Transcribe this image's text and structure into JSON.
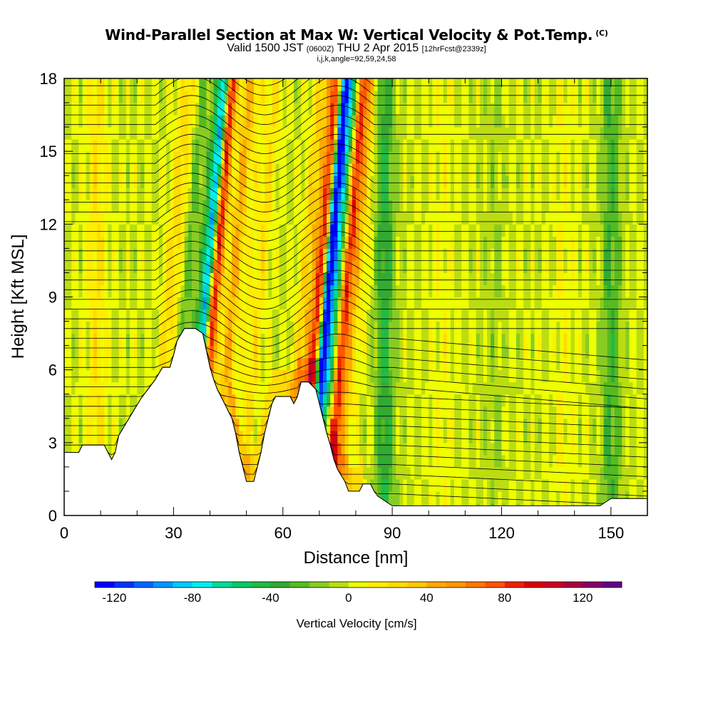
{
  "header": {
    "title": "Wind-Parallel Section at Max W: Vertical Velocity & Pot.Temp.",
    "title_mark": "(C)",
    "valid_prefix": "Valid 1500 JST",
    "valid_zulu": "(0600Z)",
    "valid_date": "THU 2 Apr 2015",
    "forecast_tag": "[12hrFcst@2339z]",
    "indices": "i,j,k,angle=92,59,24,58"
  },
  "chart_data": {
    "type": "heatmap",
    "xlabel": "Distance [nm]",
    "ylabel": "Height [Kft MSL]",
    "xlim": [
      0,
      160
    ],
    "ylim": [
      0,
      18
    ],
    "x_ticks": [
      "0",
      "30",
      "60",
      "90",
      "120",
      "150"
    ],
    "x_tick_values": [
      0,
      30,
      60,
      90,
      120,
      150
    ],
    "y_ticks": [
      "0",
      "3",
      "6",
      "9",
      "12",
      "15",
      "18"
    ],
    "y_tick_values": [
      0,
      3,
      6,
      9,
      12,
      15,
      18
    ],
    "colorbar": {
      "title": "Vertical Velocity [cm/s]",
      "labels": [
        "-120",
        "-80",
        "-40",
        "0",
        "40",
        "80",
        "120"
      ],
      "label_values": [
        -120,
        -80,
        -40,
        0,
        40,
        80,
        120
      ],
      "min": -130,
      "max": 140,
      "step": 10,
      "colors": [
        "#0000ff",
        "#0033ff",
        "#0066ff",
        "#0099ff",
        "#00ccff",
        "#00eeee",
        "#00dd99",
        "#00cc66",
        "#22bb44",
        "#33aa33",
        "#55bb22",
        "#88cc22",
        "#bbdd11",
        "#eeff00",
        "#ffee00",
        "#ffdd00",
        "#ffcc00",
        "#ffaa00",
        "#ff9900",
        "#ff7700",
        "#ff5500",
        "#ee2200",
        "#dd0000",
        "#cc0022",
        "#aa0044",
        "#880066",
        "#660088"
      ]
    },
    "terrain_top_kft": [
      [
        0,
        2.6
      ],
      [
        4,
        2.6
      ],
      [
        5,
        2.9
      ],
      [
        11,
        2.9
      ],
      [
        12,
        2.6
      ],
      [
        13,
        2.3
      ],
      [
        14,
        2.6
      ],
      [
        15,
        3.3
      ],
      [
        17,
        3.8
      ],
      [
        19,
        4.3
      ],
      [
        21,
        4.8
      ],
      [
        23,
        5.2
      ],
      [
        25,
        5.6
      ],
      [
        27,
        6.1
      ],
      [
        29,
        6.1
      ],
      [
        30,
        6.6
      ],
      [
        31,
        7.2
      ],
      [
        33,
        7.7
      ],
      [
        36,
        7.7
      ],
      [
        38,
        7.5
      ],
      [
        39,
        6.8
      ],
      [
        40,
        6.1
      ],
      [
        41,
        5.6
      ],
      [
        42,
        5.2
      ],
      [
        44,
        4.6
      ],
      [
        46,
        4.0
      ],
      [
        47,
        3.4
      ],
      [
        48,
        2.6
      ],
      [
        49,
        2.0
      ],
      [
        50,
        1.4
      ],
      [
        52,
        1.4
      ],
      [
        53,
        2.0
      ],
      [
        54,
        2.6
      ],
      [
        55,
        3.4
      ],
      [
        56,
        4.0
      ],
      [
        57,
        4.6
      ],
      [
        58,
        4.9
      ],
      [
        62,
        4.9
      ],
      [
        63,
        4.6
      ],
      [
        64,
        4.9
      ],
      [
        65,
        5.5
      ],
      [
        67,
        5.5
      ],
      [
        69,
        5.2
      ],
      [
        70,
        4.6
      ],
      [
        71,
        4.0
      ],
      [
        72,
        3.4
      ],
      [
        73,
        2.9
      ],
      [
        74,
        2.3
      ],
      [
        75,
        1.9
      ],
      [
        77,
        1.4
      ],
      [
        78,
        1.0
      ],
      [
        81,
        1.0
      ],
      [
        82,
        1.3
      ],
      [
        84,
        1.3
      ],
      [
        85,
        1.0
      ],
      [
        86,
        0.8
      ],
      [
        88,
        0.6
      ],
      [
        90,
        0.4
      ],
      [
        95,
        0.4
      ],
      [
        100,
        0.4
      ],
      [
        147,
        0.4
      ],
      [
        150,
        0.7
      ],
      [
        154,
        0.7
      ],
      [
        160,
        0.7
      ]
    ],
    "vertical_velocity_bands_cm_s": [
      {
        "x": 9,
        "w": 20
      },
      {
        "x": 29,
        "w": 40
      },
      {
        "x": 31,
        "w": -30
      },
      {
        "x": 36,
        "w": -20
      },
      {
        "x": 38,
        "w": -90
      },
      {
        "x": 40,
        "w": 100
      },
      {
        "x": 45,
        "w": 40
      },
      {
        "x": 52,
        "w": 20
      },
      {
        "x": 66,
        "w": 40
      },
      {
        "x": 69,
        "w": 90
      },
      {
        "x": 71,
        "w": -110
      },
      {
        "x": 73,
        "w": -60
      },
      {
        "x": 76,
        "w": 80
      },
      {
        "x": 78,
        "w": 40
      },
      {
        "x": 88,
        "w": -40
      },
      {
        "x": 104,
        "w": 10
      },
      {
        "x": 118,
        "w": -10
      },
      {
        "x": 137,
        "w": 10
      },
      {
        "x": 150,
        "w": -30
      }
    ]
  }
}
